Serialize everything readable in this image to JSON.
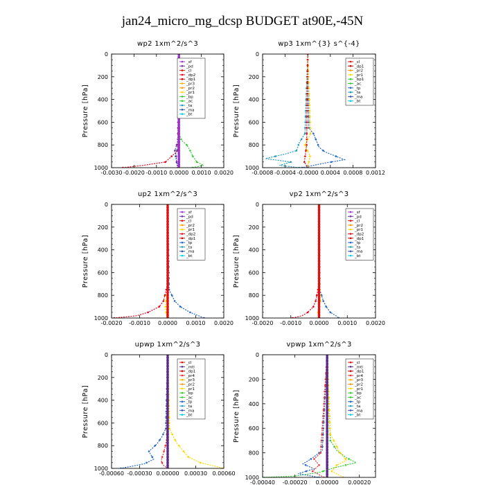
{
  "figure": {
    "title": "jan24_micro_mg_dcsp  BUDGET at90E,-45N"
  },
  "colors": {
    "sf": "#9933cc",
    "pd": "#7030a0",
    "cl": "#dd1111",
    "dp1": "#cc0000",
    "dp2": "#e8001c",
    "pr1": "#ffd700",
    "pr2": "#ff9900",
    "pr3": "#ffb000",
    "pr4": "#ee3333",
    "bp": "#33cc33",
    "ac": "#33cc33",
    "tp": "#2266cc",
    "ta": "#2299bb",
    "ma": "#3355aa",
    "bt": "#00ccee",
    "mtl": "#5b2a86"
  },
  "chart_data": [
    {
      "type": "line",
      "title": "wp2  1xm^2/s^3",
      "ylabel": "Pressure  [hPa]",
      "ylim": [
        1000,
        0
      ],
      "yticks": [
        "0",
        "200",
        "400",
        "600",
        "800",
        "1000"
      ],
      "xlim": [
        -0.003,
        0.002
      ],
      "xticks": [
        {
          "v": -0.003,
          "label": "-0.0030"
        },
        {
          "v": -0.002,
          "label": "-0.0020"
        },
        {
          "v": -0.001,
          "label": "-0.0010"
        },
        {
          "v": 0,
          "label": "0.0000"
        },
        {
          "v": 0.001,
          "label": "0.0010"
        },
        {
          "v": 0.002,
          "label": "0.0020"
        }
      ],
      "legend": [
        "_sf",
        "_pd",
        "_cl",
        "_dp2",
        "_dp1",
        "_pr3",
        "_pr2",
        "_pr1",
        "_bp",
        "_ac",
        "_ta",
        "_ma",
        "_bt"
      ],
      "series": [
        {
          "name": "_ac",
          "key": "ac",
          "p": [
            0,
            700,
            760,
            800,
            850,
            900,
            950,
            980,
            1000
          ],
          "v": [
            0,
            0,
            0.00012,
            0.00035,
            0.0005,
            0.00062,
            0.0008,
            0.0011,
            0.0006
          ]
        },
        {
          "name": "_ta",
          "key": "ta",
          "p": [
            0,
            800,
            900,
            950,
            1000
          ],
          "v": [
            0,
            -5e-05,
            -0.00015,
            -0.0001,
            0
          ]
        },
        {
          "name": "_dp2",
          "key": "dp2",
          "p": [
            0,
            850,
            950,
            980,
            1000
          ],
          "v": [
            0,
            -5e-05,
            -0.0006,
            -0.0016,
            -0.0025
          ]
        },
        {
          "name": "_pd",
          "key": "pd",
          "p": [
            0,
            720,
            800,
            850,
            900,
            960,
            1000
          ],
          "v": [
            0,
            0,
            -0.0001,
            -0.00018,
            -0.00012,
            -0.0001,
            -5e-05
          ]
        },
        {
          "name": "_sf",
          "key": "sf",
          "p": [
            0,
            1000
          ],
          "v": [
            0,
            0
          ]
        }
      ]
    },
    {
      "type": "line",
      "title": "wp3  1xm^{3} s^{-4}",
      "ylabel": "Pressure  [hPa]",
      "ylim": [
        1000,
        0
      ],
      "yticks": [
        "0",
        "200",
        "400",
        "600",
        "800",
        "1000"
      ],
      "xlim": [
        -0.0008,
        0.0012
      ],
      "xticks": [
        {
          "v": -0.0008,
          "label": "-0.0008"
        },
        {
          "v": -0.0004,
          "label": "-0.0004"
        },
        {
          "v": 0,
          "label": "-0.0000"
        },
        {
          "v": 0.0004,
          "label": "0.0004"
        },
        {
          "v": 0.0008,
          "label": "0.0008"
        },
        {
          "v": 0.0012,
          "label": "0.0012"
        }
      ],
      "legend": [
        "_cl",
        "_dp1",
        "_pr2",
        "_pr1",
        "_bp1",
        "_ac",
        "_tp",
        "_ta",
        "_ma",
        "_bt"
      ],
      "series": [
        {
          "name": "_tp",
          "key": "tp",
          "p": [
            0,
            650,
            700,
            760,
            820,
            860,
            900,
            930,
            960,
            1000
          ],
          "v": [
            0,
            2e-05,
            0.0001,
            0.00015,
            0.0002,
            0.0003,
            0.0005,
            0.00065,
            0.0003,
            -0.0001
          ]
        },
        {
          "name": "_ta",
          "key": "ta",
          "p": [
            0,
            700,
            780,
            850,
            880,
            920,
            950,
            980,
            1000
          ],
          "v": [
            0,
            -5e-05,
            -0.00015,
            -0.0002,
            -0.0004,
            -0.00075,
            -0.0003,
            -0.0005,
            -0.00015
          ]
        },
        {
          "name": "_pr1",
          "key": "pr1",
          "p": [
            0,
            700,
            800,
            900,
            1000
          ],
          "v": [
            0,
            5e-05,
            -5e-05,
            4e-05,
            0
          ]
        },
        {
          "name": "_cl",
          "key": "cl",
          "p": [
            0,
            800,
            950,
            1000
          ],
          "v": [
            0,
            -2e-05,
            -6e-05,
            0
          ]
        }
      ]
    },
    {
      "type": "line",
      "title": "up2  1xm^2/s^3",
      "ylabel": "Pressure  [hPa]",
      "ylim": [
        1000,
        0
      ],
      "yticks": [
        "0",
        "200",
        "400",
        "600",
        "800",
        "1000"
      ],
      "xlim": [
        -0.002,
        0.002
      ],
      "xticks": [
        {
          "v": -0.002,
          "label": "-0.0020"
        },
        {
          "v": -0.001,
          "label": "-0.0010"
        },
        {
          "v": 0,
          "label": "0.0000"
        },
        {
          "v": 0.001,
          "label": "0.0010"
        },
        {
          "v": 0.002,
          "label": "0.0020"
        }
      ],
      "legend": [
        "_sf",
        "_pd",
        "_cl",
        "_pr2",
        "_pr1",
        "_dp2",
        "_dp1",
        "_tp",
        "_ta",
        "_ma",
        "_bt"
      ],
      "series": [
        {
          "name": "_tp",
          "key": "tp",
          "p": [
            0,
            750,
            850,
            900,
            950,
            980,
            1000
          ],
          "v": [
            0,
            5e-05,
            0.00025,
            0.00045,
            0.0008,
            0.0011,
            0.0013
          ]
        },
        {
          "name": "_dp2",
          "key": "dp2",
          "p": [
            0,
            700,
            800,
            850,
            900,
            950,
            980,
            1000
          ],
          "v": [
            0,
            0,
            -0.0001,
            -0.00015,
            -0.0003,
            -0.0007,
            -0.0011,
            -0.0019
          ]
        },
        {
          "name": "_pr1",
          "key": "pr1",
          "p": [
            0,
            700,
            800,
            900,
            1000
          ],
          "v": [
            0,
            2e-05,
            -4e-05,
            -8e-05,
            -3e-05
          ]
        },
        {
          "name": "_cl",
          "key": "cl",
          "p": [
            0,
            1000
          ],
          "v": [
            0,
            0
          ]
        }
      ]
    },
    {
      "type": "line",
      "title": "vp2  1xm^2/s^3",
      "ylabel": "Pressure  [hPa]",
      "ylim": [
        1000,
        0
      ],
      "yticks": [
        "0",
        "200",
        "400",
        "600",
        "800",
        "1000"
      ],
      "xlim": [
        -0.002,
        0.002
      ],
      "xticks": [
        {
          "v": -0.002,
          "label": "-0.0020"
        },
        {
          "v": -0.001,
          "label": "-0.0010"
        },
        {
          "v": 0,
          "label": "0.0000"
        },
        {
          "v": 0.001,
          "label": "0.0010"
        },
        {
          "v": 0.002,
          "label": "0.0020"
        }
      ],
      "legend": [
        "_sf",
        "_pd",
        "_cl",
        "_pr2",
        "_pr1",
        "_dp2",
        "_dp1",
        "_tp",
        "_ta",
        "_ma",
        "_bt"
      ],
      "series": [
        {
          "name": "_tp",
          "key": "tp",
          "p": [
            0,
            750,
            850,
            900,
            950,
            980,
            1000
          ],
          "v": [
            0,
            3e-05,
            0.00015,
            0.00025,
            0.0004,
            0.0006,
            0.0007
          ]
        },
        {
          "name": "_dp2",
          "key": "dp2",
          "p": [
            0,
            700,
            800,
            850,
            900,
            950,
            980,
            1000
          ],
          "v": [
            0,
            0,
            -8e-05,
            -0.00012,
            -0.0002,
            -0.0004,
            -0.0006,
            -0.00095
          ]
        },
        {
          "name": "_pr1",
          "key": "pr1",
          "p": [
            0,
            750,
            850,
            950,
            1000
          ],
          "v": [
            0,
            3e-05,
            5e-05,
            -4e-05,
            -2e-05
          ]
        },
        {
          "name": "_cl",
          "key": "cl",
          "p": [
            0,
            1000
          ],
          "v": [
            0,
            0
          ]
        }
      ]
    },
    {
      "type": "line",
      "title": "upwp  1xm^2/s^3",
      "ylabel": "Pressure  [hPa]",
      "ylim": [
        1000,
        0
      ],
      "yticks": [
        "0",
        "200",
        "400",
        "600",
        "800",
        "1000"
      ],
      "xlim": [
        -0.0006,
        0.0006
      ],
      "xticks": [
        {
          "v": -0.0006,
          "label": "-0.00060"
        },
        {
          "v": -0.0003,
          "label": "-0.00030"
        },
        {
          "v": 0,
          "label": "0.00000"
        },
        {
          "v": 0.0003,
          "label": "0.00030"
        },
        {
          "v": 0.0006,
          "label": "0.00060"
        }
      ],
      "legend": [
        "_cl",
        "_mtl",
        "_dp1",
        "_pr4",
        "_pr3",
        "_pr2",
        "_pr1",
        "_bp",
        "_ac",
        "_tp",
        "_ta",
        "_ma",
        "_bt"
      ],
      "series": [
        {
          "name": "_tp",
          "key": "tp",
          "p": [
            0,
            650,
            720,
            780,
            820,
            850,
            880,
            920,
            960,
            1000
          ],
          "v": [
            0,
            -2e-05,
            -6e-05,
            -0.00011,
            -0.00016,
            -0.0002,
            -0.00018,
            -0.00015,
            -0.00025,
            -0.0005
          ]
        },
        {
          "name": "_pr1",
          "key": "pr1",
          "p": [
            0,
            650,
            720,
            780,
            820,
            860,
            900,
            950,
            980,
            1000
          ],
          "v": [
            0,
            2e-05,
            6e-05,
            0.0001,
            0.00014,
            0.00018,
            0.00022,
            0.00035,
            0.0005,
            0.0006
          ]
        },
        {
          "name": "_pr4",
          "key": "pr4",
          "p": [
            0,
            750,
            820,
            880,
            930,
            970,
            1000
          ],
          "v": [
            0,
            -1e-05,
            -3e-05,
            -5e-05,
            -7e-05,
            -5e-05,
            0
          ]
        },
        {
          "name": "_mtl",
          "key": "mtl",
          "p": [
            0,
            1000
          ],
          "v": [
            0,
            0
          ]
        }
      ]
    },
    {
      "type": "line",
      "title": "vpwp  1xm^2/s^3",
      "ylabel": "Pressure  [hPa]",
      "ylim": [
        1000,
        0
      ],
      "yticks": [
        "0",
        "200",
        "400",
        "600",
        "800",
        "1000"
      ],
      "xlim": [
        -0.0004,
        0.0003
      ],
      "xticks": [
        {
          "v": -0.0004,
          "label": "-0.00040"
        },
        {
          "v": -0.0002,
          "label": "-0.00020"
        },
        {
          "v": 0,
          "label": "0.00000"
        },
        {
          "v": 0.0002,
          "label": "0.00020"
        }
      ],
      "legend": [
        "_cl",
        "_mtl",
        "_dp1",
        "_pr4",
        "_pr3",
        "_pr2",
        "_pr1",
        "_bp",
        "_ac",
        "_tp",
        "_ta",
        "_ma",
        "_bt"
      ],
      "series": [
        {
          "name": "_bp",
          "key": "bp",
          "p": [
            0,
            700,
            780,
            840,
            880,
            920,
            960,
            990,
            1000
          ],
          "v": [
            0,
            2e-05,
            6e-05,
            0.00012,
            0.00018,
            5e-05,
            -5e-05,
            -0.0002,
            -0.0004
          ]
        },
        {
          "name": "_tp",
          "key": "tp",
          "p": [
            0,
            780,
            850,
            890,
            930,
            970,
            1000
          ],
          "v": [
            0,
            -3e-05,
            -0.0001,
            -0.00015,
            -8e-05,
            -0.00018,
            -5e-05
          ]
        },
        {
          "name": "_pr1",
          "key": "pr1",
          "p": [
            0,
            650,
            720,
            800,
            860,
            900,
            950,
            1000
          ],
          "v": [
            0,
            2e-05,
            5e-05,
            8e-05,
            0.00012,
            6e-05,
            3e-05,
            0.0001
          ]
        },
        {
          "name": "_pr4",
          "key": "pr4",
          "p": [
            0,
            800,
            850,
            900,
            950,
            1000
          ],
          "v": [
            0,
            -4e-05,
            -8e-05,
            -5e-05,
            -9e-05,
            -2e-05
          ]
        },
        {
          "name": "_mtl",
          "key": "mtl",
          "p": [
            0,
            1000
          ],
          "v": [
            0,
            0
          ]
        }
      ]
    }
  ]
}
